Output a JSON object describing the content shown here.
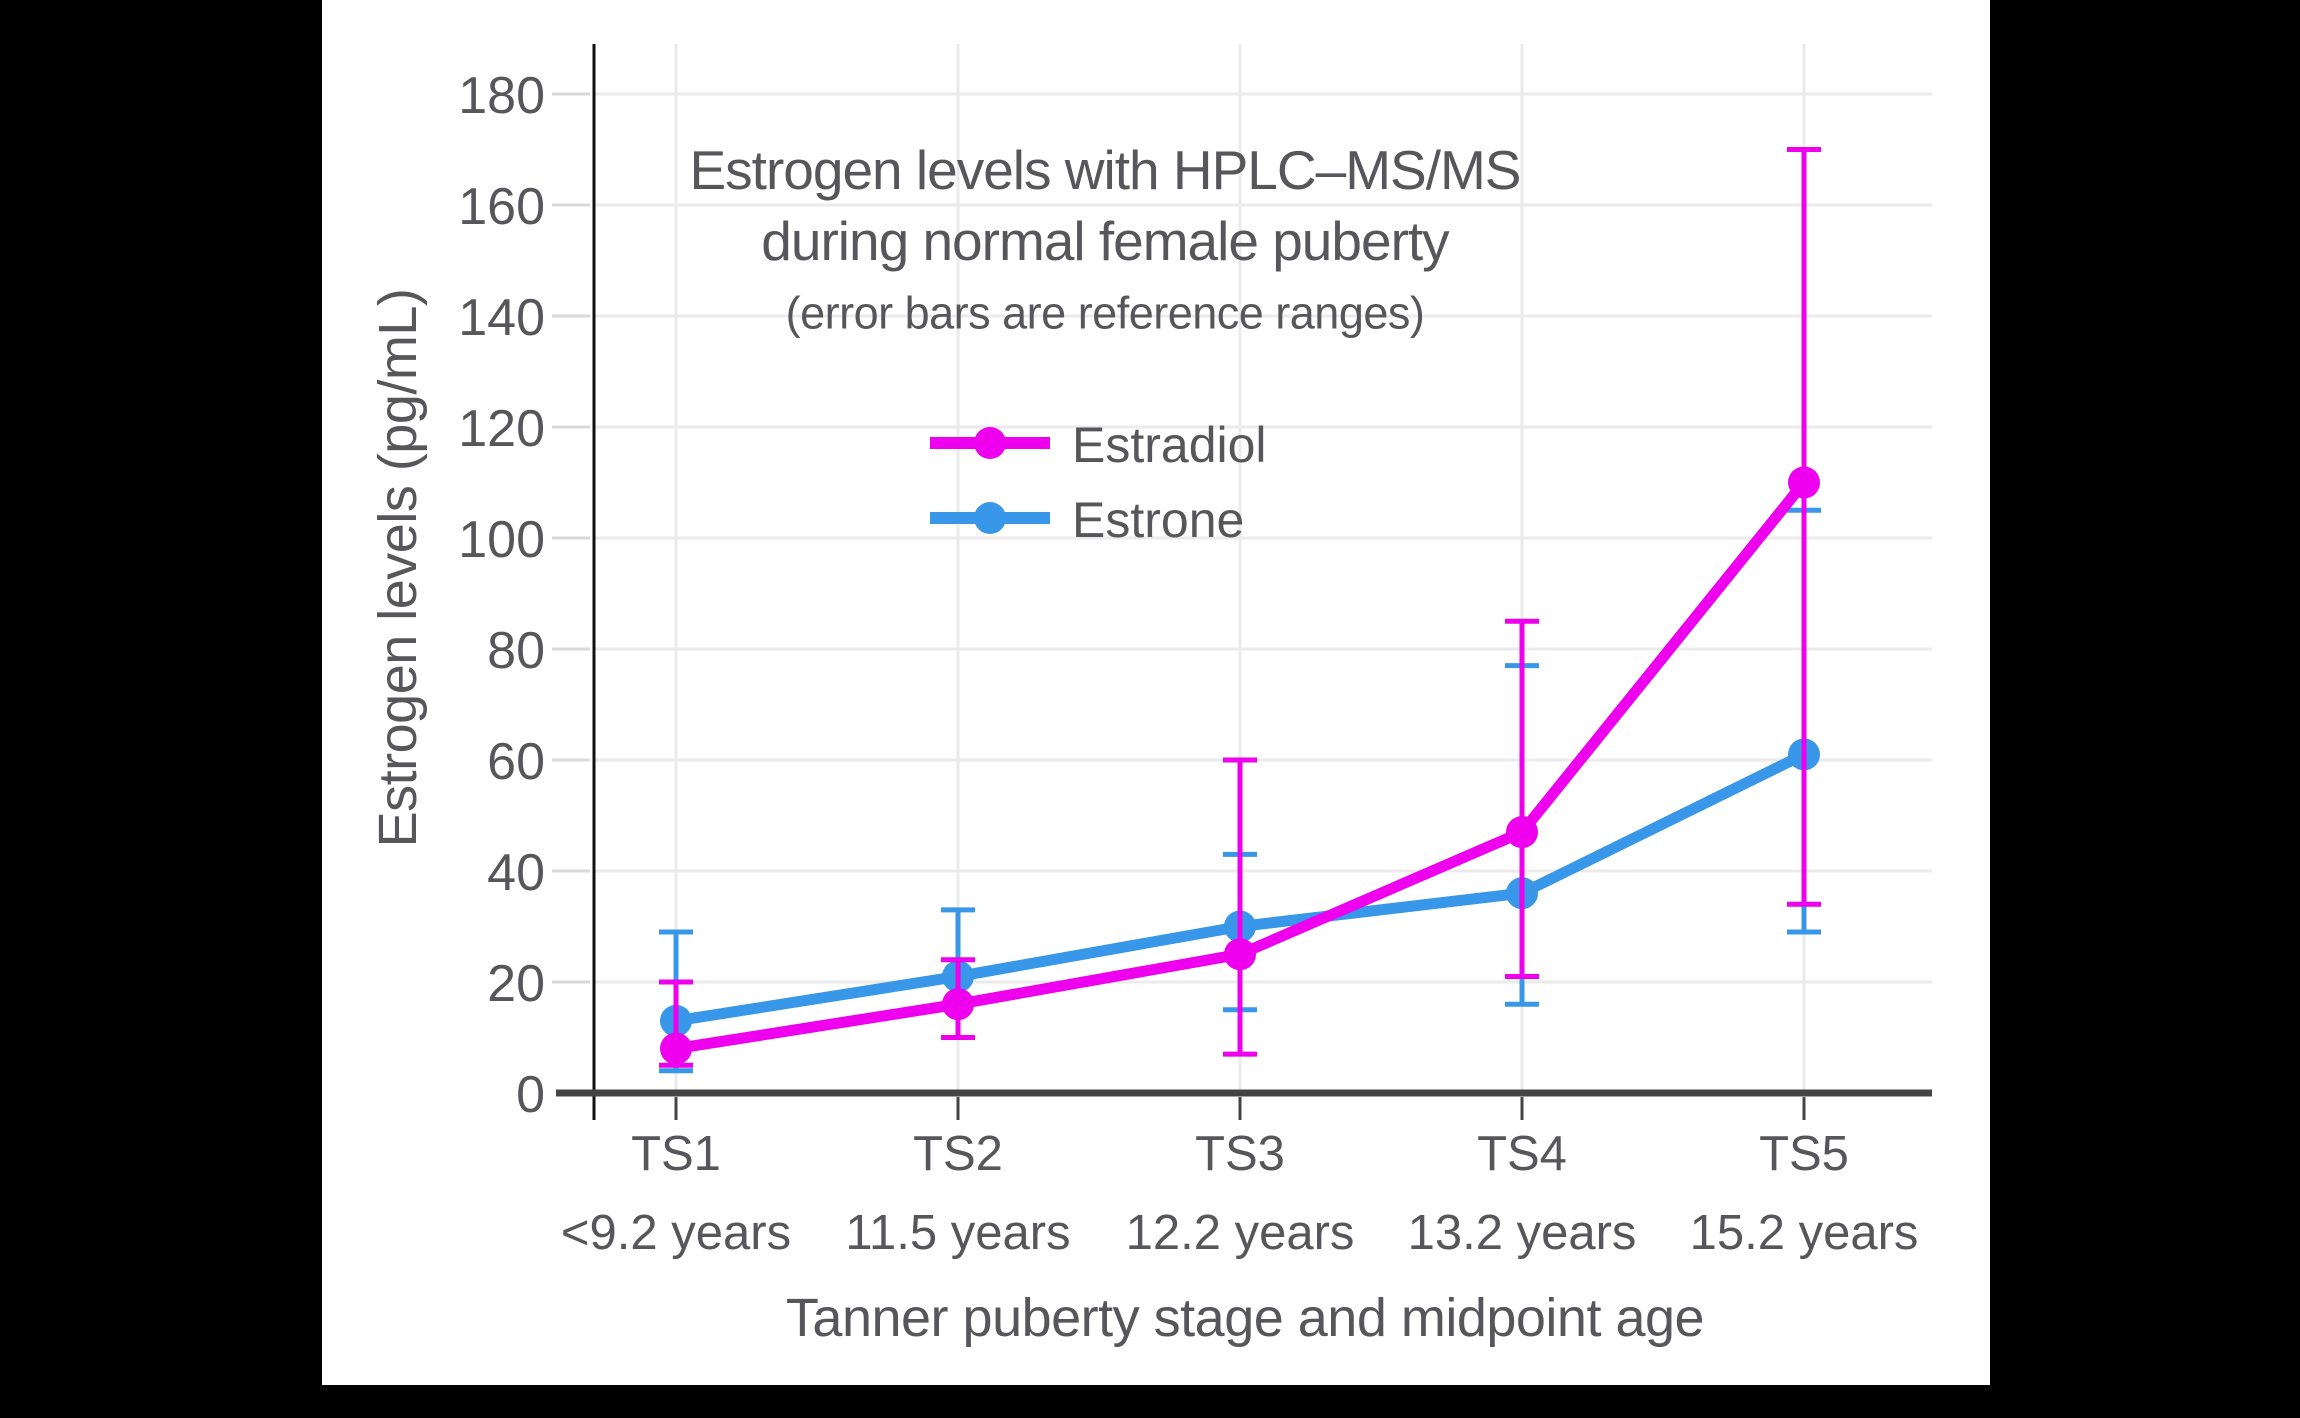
{
  "canvas": {
    "bg": "#000000",
    "panel_bg": "#ffffff"
  },
  "styles": {
    "text_color": "#57575b",
    "grid_color": "#ebebeb",
    "y_tick_color": "#d9d9d9",
    "x_axis_color": "#444444",
    "y_axis_color": "#111111"
  },
  "chart_data": {
    "type": "line",
    "title_line1": "Estrogen levels with HPLC–MS/MS",
    "title_line2": "during normal female puberty",
    "subtitle": "(error bars are reference ranges)",
    "ylabel": "Estrogen levels (pg/mL)",
    "xlabel": "Tanner puberty stage and midpoint age",
    "categories": [
      "TS1",
      "TS2",
      "TS3",
      "TS4",
      "TS5"
    ],
    "category_ages": [
      "<9.2 years",
      "11.5 years",
      "12.2 years",
      "13.2 years",
      "15.2 years"
    ],
    "y_ticks": [
      0,
      20,
      40,
      60,
      80,
      100,
      120,
      140,
      160,
      180
    ],
    "ylim": [
      0,
      188
    ],
    "grid": true,
    "legend_position": "inside-upper-left",
    "error_bar_meaning": "reference range (lower, upper)",
    "series": [
      {
        "name": "Estradiol",
        "color": "#EE00EE",
        "values": [
          8,
          16,
          25,
          47,
          110
        ],
        "error_low": [
          5,
          10,
          7,
          21,
          34
        ],
        "error_high": [
          20,
          24,
          60,
          85,
          170
        ]
      },
      {
        "name": "Estrone",
        "color": "#3897E8",
        "values": [
          13,
          21,
          30,
          36,
          61
        ],
        "error_low": [
          4,
          10,
          15,
          16,
          29
        ],
        "error_high": [
          29,
          33,
          43,
          77,
          105
        ]
      }
    ]
  }
}
